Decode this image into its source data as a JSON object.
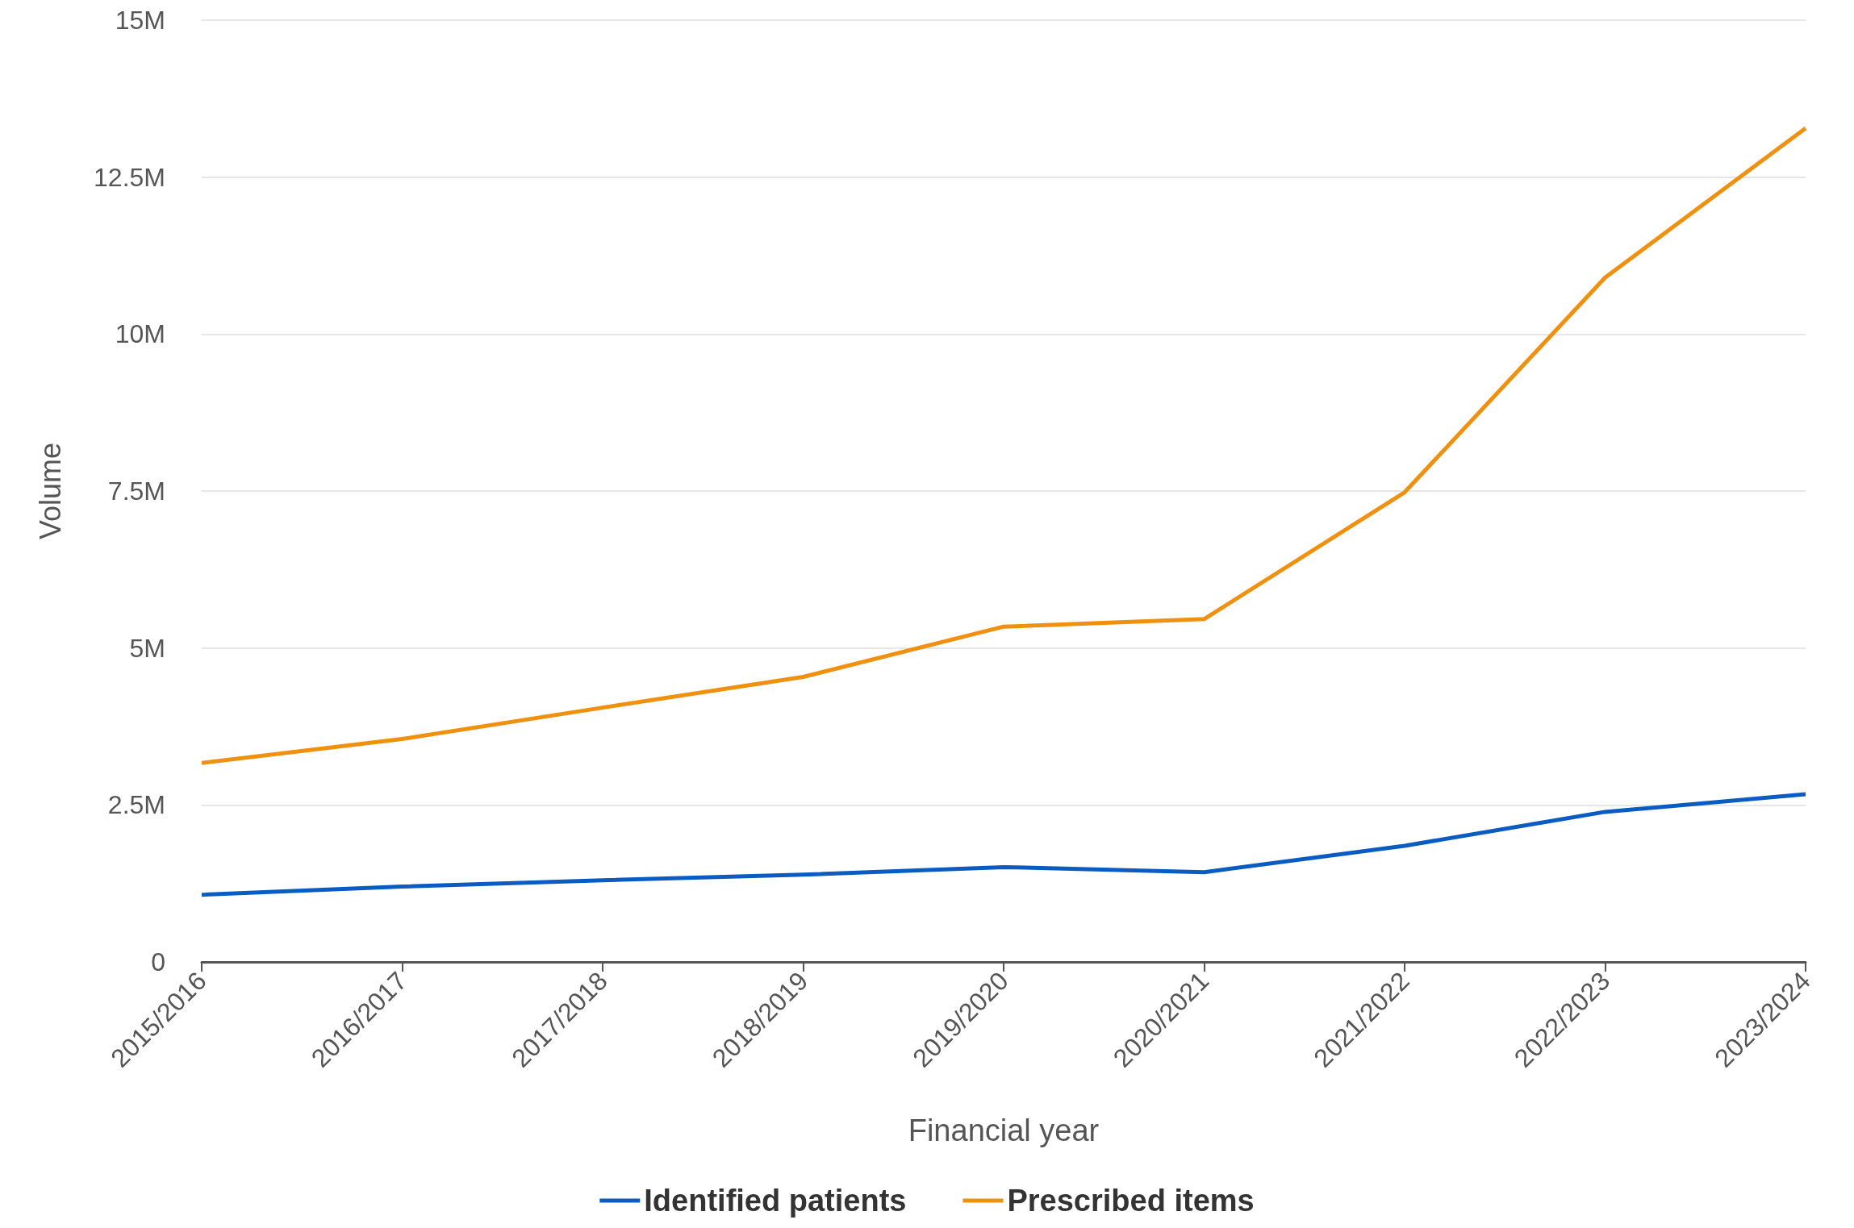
{
  "chart_data": {
    "type": "line",
    "xlabel": "Financial year",
    "ylabel": "Volume",
    "categories": [
      "2015/2016",
      "2016/2017",
      "2017/2018",
      "2018/2019",
      "2019/2020",
      "2020/2021",
      "2021/2022",
      "2022/2023",
      "2023/2024"
    ],
    "series": [
      {
        "name": "Identified patients",
        "color": "#0b5cc2",
        "values": [
          1.07,
          1.2,
          1.3,
          1.39,
          1.51,
          1.43,
          1.85,
          2.39,
          2.67
        ]
      },
      {
        "name": "Prescribed items",
        "color": "#f0900f",
        "values": [
          3.17,
          3.55,
          4.05,
          4.54,
          5.34,
          5.46,
          7.48,
          10.9,
          13.28
        ]
      }
    ],
    "ylim": [
      0,
      15
    ],
    "yticks": [
      0,
      {
        "value": 2.5,
        "label": "2.5M"
      },
      {
        "value": 5,
        "label": "5M"
      },
      {
        "value": 7.5,
        "label": "7.5M"
      },
      {
        "value": 10,
        "label": "10M"
      },
      {
        "value": 12.5,
        "label": "12.5M"
      },
      {
        "value": 15,
        "label": "15M"
      }
    ],
    "grid": "y",
    "legend": "bottom",
    "marker": "none",
    "line_style": "solid"
  }
}
